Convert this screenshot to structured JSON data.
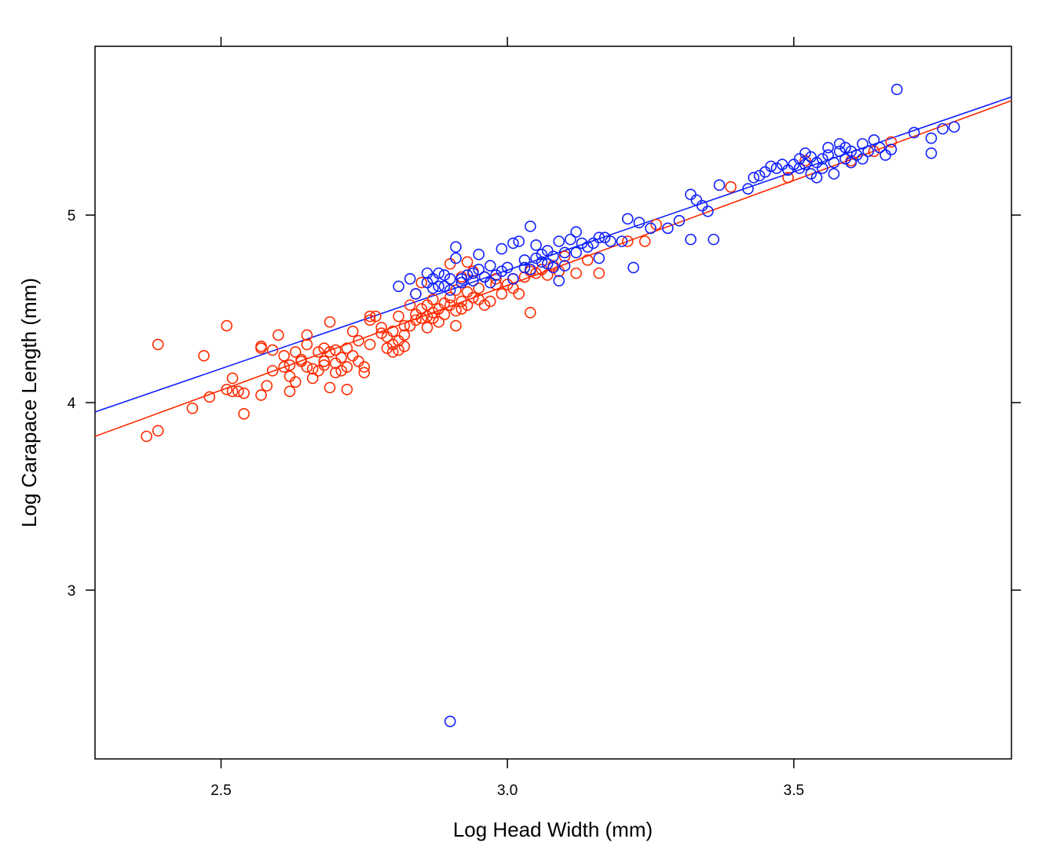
{
  "chart_data": {
    "type": "scatter",
    "title": "",
    "xlabel": "Log Head Width (mm)",
    "ylabel": "Log Carapace Length (mm)",
    "xlim": [
      2.28,
      3.88
    ],
    "ylim": [
      2.1,
      5.9
    ],
    "x_ticks": [
      2.5,
      3.0,
      3.5
    ],
    "x_tick_labels": [
      "2.5",
      "3.0",
      "3.5"
    ],
    "y_ticks": [
      3,
      4,
      5
    ],
    "y_tick_labels": [
      "3",
      "4",
      "5"
    ],
    "grid": false,
    "legend": "none",
    "series": [
      {
        "color": "#ff2a00",
        "marker": "open-circle",
        "fit_line": {
          "x": [
            2.28,
            3.88
          ],
          "y": [
            3.82,
            5.61
          ]
        },
        "points": [
          [
            2.37,
            3.82
          ],
          [
            2.39,
            3.85
          ],
          [
            2.39,
            4.31
          ],
          [
            2.45,
            3.97
          ],
          [
            2.47,
            4.25
          ],
          [
            2.48,
            4.03
          ],
          [
            2.51,
            4.41
          ],
          [
            2.51,
            4.07
          ],
          [
            2.52,
            4.06
          ],
          [
            2.52,
            4.13
          ],
          [
            2.53,
            4.06
          ],
          [
            2.54,
            3.94
          ],
          [
            2.54,
            4.05
          ],
          [
            2.57,
            4.29
          ],
          [
            2.57,
            4.3
          ],
          [
            2.57,
            4.04
          ],
          [
            2.58,
            4.09
          ],
          [
            2.59,
            4.28
          ],
          [
            2.59,
            4.17
          ],
          [
            2.6,
            4.36
          ],
          [
            2.61,
            4.19
          ],
          [
            2.61,
            4.25
          ],
          [
            2.62,
            4.14
          ],
          [
            2.62,
            4.06
          ],
          [
            2.62,
            4.2
          ],
          [
            2.63,
            4.11
          ],
          [
            2.63,
            4.27
          ],
          [
            2.64,
            4.22
          ],
          [
            2.64,
            4.23
          ],
          [
            2.65,
            4.31
          ],
          [
            2.65,
            4.36
          ],
          [
            2.65,
            4.19
          ],
          [
            2.66,
            4.13
          ],
          [
            2.66,
            4.18
          ],
          [
            2.67,
            4.17
          ],
          [
            2.67,
            4.27
          ],
          [
            2.68,
            4.2
          ],
          [
            2.68,
            4.29
          ],
          [
            2.68,
            4.22
          ],
          [
            2.69,
            4.27
          ],
          [
            2.69,
            4.43
          ],
          [
            2.69,
            4.08
          ],
          [
            2.7,
            4.16
          ],
          [
            2.7,
            4.21
          ],
          [
            2.7,
            4.28
          ],
          [
            2.71,
            4.17
          ],
          [
            2.71,
            4.24
          ],
          [
            2.72,
            4.29
          ],
          [
            2.72,
            4.19
          ],
          [
            2.72,
            4.07
          ],
          [
            2.73,
            4.38
          ],
          [
            2.73,
            4.25
          ],
          [
            2.74,
            4.22
          ],
          [
            2.74,
            4.33
          ],
          [
            2.75,
            4.19
          ],
          [
            2.75,
            4.16
          ],
          [
            2.76,
            4.31
          ],
          [
            2.76,
            4.44
          ],
          [
            2.76,
            4.46
          ],
          [
            2.77,
            4.46
          ],
          [
            2.78,
            4.37
          ],
          [
            2.78,
            4.4
          ],
          [
            2.79,
            4.29
          ],
          [
            2.79,
            4.35
          ],
          [
            2.8,
            4.31
          ],
          [
            2.8,
            4.27
          ],
          [
            2.8,
            4.38
          ],
          [
            2.81,
            4.33
          ],
          [
            2.81,
            4.46
          ],
          [
            2.81,
            4.28
          ],
          [
            2.82,
            4.41
          ],
          [
            2.82,
            4.36
          ],
          [
            2.82,
            4.3
          ],
          [
            2.83,
            4.41
          ],
          [
            2.83,
            4.52
          ],
          [
            2.84,
            4.44
          ],
          [
            2.84,
            4.47
          ],
          [
            2.84,
            4.58
          ],
          [
            2.85,
            4.5
          ],
          [
            2.85,
            4.45
          ],
          [
            2.85,
            4.64
          ],
          [
            2.86,
            4.4
          ],
          [
            2.86,
            4.52
          ],
          [
            2.86,
            4.46
          ],
          [
            2.87,
            4.48
          ],
          [
            2.87,
            4.55
          ],
          [
            2.87,
            4.45
          ],
          [
            2.88,
            4.43
          ],
          [
            2.88,
            4.5
          ],
          [
            2.89,
            4.53
          ],
          [
            2.89,
            4.47
          ],
          [
            2.9,
            4.56
          ],
          [
            2.9,
            4.74
          ],
          [
            2.9,
            4.52
          ],
          [
            2.91,
            4.49
          ],
          [
            2.91,
            4.6
          ],
          [
            2.91,
            4.41
          ],
          [
            2.92,
            4.54
          ],
          [
            2.92,
            4.5
          ],
          [
            2.92,
            4.67
          ],
          [
            2.93,
            4.52
          ],
          [
            2.93,
            4.59
          ],
          [
            2.93,
            4.75
          ],
          [
            2.94,
            4.7
          ],
          [
            2.94,
            4.56
          ],
          [
            2.95,
            4.61
          ],
          [
            2.95,
            4.55
          ],
          [
            2.96,
            4.67
          ],
          [
            2.96,
            4.52
          ],
          [
            2.97,
            4.54
          ],
          [
            2.98,
            4.63
          ],
          [
            2.98,
            4.66
          ],
          [
            2.99,
            4.58
          ],
          [
            3.0,
            4.63
          ],
          [
            3.01,
            4.61
          ],
          [
            3.01,
            4.66
          ],
          [
            3.02,
            4.58
          ],
          [
            3.03,
            4.67
          ],
          [
            3.04,
            4.7
          ],
          [
            3.04,
            4.48
          ],
          [
            3.05,
            4.69
          ],
          [
            3.06,
            4.71
          ],
          [
            3.07,
            4.68
          ],
          [
            3.08,
            4.73
          ],
          [
            3.09,
            4.7
          ],
          [
            3.1,
            4.78
          ],
          [
            3.12,
            4.69
          ],
          [
            3.14,
            4.76
          ],
          [
            3.16,
            4.69
          ],
          [
            3.21,
            4.86
          ],
          [
            3.24,
            4.86
          ],
          [
            3.26,
            4.95
          ],
          [
            3.39,
            5.15
          ],
          [
            3.49,
            5.2
          ],
          [
            3.52,
            5.29
          ],
          [
            3.6,
            5.29
          ],
          [
            3.64,
            5.34
          ],
          [
            3.67,
            5.39
          ]
        ]
      },
      {
        "color": "#1020ff",
        "marker": "open-circle",
        "fit_line": {
          "x": [
            2.28,
            3.88
          ],
          "y": [
            3.95,
            5.63
          ]
        },
        "points": [
          [
            2.81,
            4.62
          ],
          [
            2.83,
            4.66
          ],
          [
            2.84,
            4.58
          ],
          [
            2.86,
            4.69
          ],
          [
            2.86,
            4.64
          ],
          [
            2.87,
            4.66
          ],
          [
            2.87,
            4.61
          ],
          [
            2.88,
            4.69
          ],
          [
            2.88,
            4.62
          ],
          [
            2.89,
            4.68
          ],
          [
            2.89,
            4.62
          ],
          [
            2.9,
            4.66
          ],
          [
            2.9,
            4.6
          ],
          [
            2.91,
            4.83
          ],
          [
            2.91,
            4.77
          ],
          [
            2.92,
            4.66
          ],
          [
            2.92,
            4.64
          ],
          [
            2.93,
            4.68
          ],
          [
            2.94,
            4.65
          ],
          [
            2.94,
            4.69
          ],
          [
            2.95,
            4.79
          ],
          [
            2.95,
            4.71
          ],
          [
            2.96,
            4.67
          ],
          [
            2.97,
            4.73
          ],
          [
            2.97,
            4.64
          ],
          [
            2.98,
            4.68
          ],
          [
            2.99,
            4.82
          ],
          [
            2.99,
            4.7
          ],
          [
            3.0,
            4.72
          ],
          [
            3.01,
            4.85
          ],
          [
            3.01,
            4.66
          ],
          [
            3.02,
            4.86
          ],
          [
            3.03,
            4.72
          ],
          [
            3.03,
            4.76
          ],
          [
            3.04,
            4.94
          ],
          [
            3.04,
            4.71
          ],
          [
            3.05,
            4.77
          ],
          [
            3.05,
            4.84
          ],
          [
            3.06,
            4.75
          ],
          [
            3.06,
            4.79
          ],
          [
            3.07,
            4.74
          ],
          [
            3.07,
            4.81
          ],
          [
            3.08,
            4.72
          ],
          [
            3.08,
            4.78
          ],
          [
            3.09,
            4.86
          ],
          [
            3.09,
            4.65
          ],
          [
            3.1,
            4.8
          ],
          [
            3.1,
            4.73
          ],
          [
            3.11,
            4.87
          ],
          [
            3.12,
            4.91
          ],
          [
            3.12,
            4.8
          ],
          [
            3.13,
            4.85
          ],
          [
            3.14,
            4.83
          ],
          [
            3.15,
            4.85
          ],
          [
            3.16,
            4.88
          ],
          [
            3.16,
            4.77
          ],
          [
            3.17,
            4.88
          ],
          [
            3.18,
            4.86
          ],
          [
            3.2,
            4.86
          ],
          [
            3.21,
            4.98
          ],
          [
            3.22,
            4.72
          ],
          [
            3.23,
            4.96
          ],
          [
            3.25,
            4.93
          ],
          [
            3.28,
            4.93
          ],
          [
            3.3,
            4.97
          ],
          [
            3.32,
            4.87
          ],
          [
            3.32,
            5.11
          ],
          [
            3.33,
            5.08
          ],
          [
            3.34,
            5.05
          ],
          [
            3.35,
            5.02
          ],
          [
            3.36,
            4.87
          ],
          [
            3.37,
            5.16
          ],
          [
            3.42,
            5.14
          ],
          [
            3.43,
            5.2
          ],
          [
            3.44,
            5.21
          ],
          [
            3.45,
            5.23
          ],
          [
            3.46,
            5.26
          ],
          [
            3.47,
            5.25
          ],
          [
            3.48,
            5.27
          ],
          [
            3.49,
            5.24
          ],
          [
            3.5,
            5.27
          ],
          [
            3.51,
            5.25
          ],
          [
            3.51,
            5.3
          ],
          [
            3.52,
            5.33
          ],
          [
            3.52,
            5.27
          ],
          [
            3.53,
            5.31
          ],
          [
            3.53,
            5.22
          ],
          [
            3.54,
            5.28
          ],
          [
            3.54,
            5.2
          ],
          [
            3.55,
            5.3
          ],
          [
            3.55,
            5.25
          ],
          [
            3.56,
            5.32
          ],
          [
            3.56,
            5.36
          ],
          [
            3.57,
            5.28
          ],
          [
            3.57,
            5.22
          ],
          [
            3.58,
            5.34
          ],
          [
            3.58,
            5.38
          ],
          [
            3.59,
            5.3
          ],
          [
            3.59,
            5.36
          ],
          [
            3.6,
            5.34
          ],
          [
            3.6,
            5.28
          ],
          [
            3.61,
            5.32
          ],
          [
            3.62,
            5.38
          ],
          [
            3.62,
            5.3
          ],
          [
            3.63,
            5.34
          ],
          [
            3.64,
            5.4
          ],
          [
            3.65,
            5.36
          ],
          [
            3.66,
            5.32
          ],
          [
            3.67,
            5.35
          ],
          [
            3.68,
            5.67
          ],
          [
            3.71,
            5.44
          ],
          [
            3.74,
            5.41
          ],
          [
            3.74,
            5.33
          ],
          [
            3.76,
            5.46
          ],
          [
            3.78,
            5.47
          ],
          [
            2.9,
            2.3
          ]
        ]
      }
    ]
  }
}
